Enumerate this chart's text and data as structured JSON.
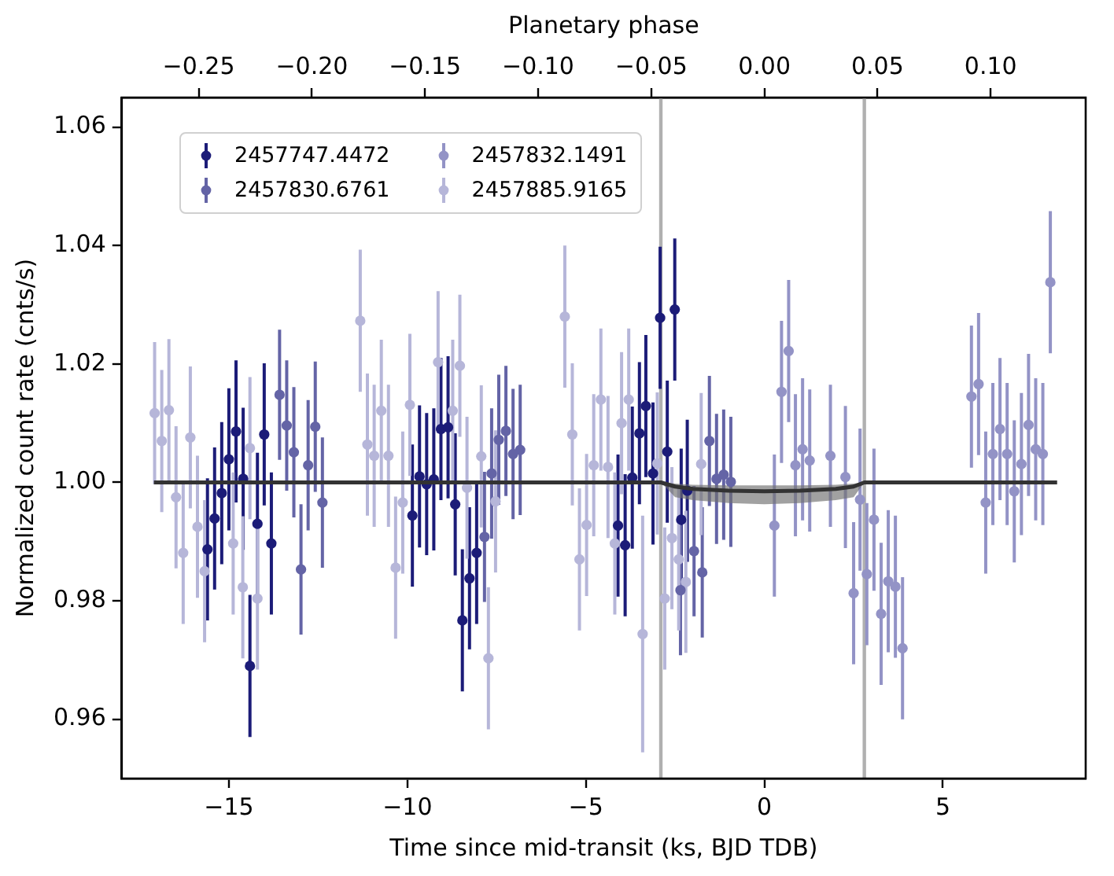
{
  "chart_data": {
    "type": "scatter",
    "xlabel": "Time since mid-transit (ks, BJD TDB)",
    "ylabel": "Normalized count rate (cnts/s)",
    "x2label": "Planetary phase",
    "xlim": [
      -18,
      9
    ],
    "xticks": [
      {
        "value": -15,
        "label": "−15"
      },
      {
        "value": -10,
        "label": "−10"
      },
      {
        "value": -5,
        "label": "−5"
      },
      0,
      5
    ],
    "x2lim": [
      -0.284,
      0.142
    ],
    "x2ticks": [
      {
        "value": -0.25,
        "label": "−0.25"
      },
      {
        "value": -0.2,
        "label": "−0.20"
      },
      {
        "value": -0.15,
        "label": "−0.15"
      },
      {
        "value": -0.1,
        "label": "−0.10"
      },
      {
        "value": -0.05,
        "label": "−0.05"
      },
      {
        "value": 0,
        "label": "0.00"
      },
      {
        "value": 0.05,
        "label": "0.05"
      },
      {
        "value": 0.1,
        "label": "0.10"
      }
    ],
    "ylim": [
      0.95,
      1.065
    ],
    "yticks": [
      {
        "value": 0.96,
        "label": "0.96"
      },
      {
        "value": 0.98,
        "label": "0.98"
      },
      {
        "value": 1,
        "label": "1.00"
      },
      {
        "value": 1.02,
        "label": "1.02"
      },
      {
        "value": 1.04,
        "label": "1.04"
      },
      {
        "value": 1.06,
        "label": "1.06"
      }
    ],
    "grid": false,
    "legend": "top left",
    "marker": "circle",
    "ref_lines": [
      {
        "axis": "x",
        "value": -2.9,
        "color": "#b0b0b0"
      },
      {
        "axis": "x",
        "value": 2.8,
        "color": "#b0b0b0"
      }
    ],
    "series": [
      {
        "name": "2457747.4472",
        "color": "#1c1c78",
        "x": [
          -15.6,
          -15.4,
          -15.2,
          -15.0,
          -14.8,
          -14.6,
          -14.41,
          -14.2,
          -14.01,
          -13.81,
          -9.86,
          -9.66,
          -9.46,
          -9.26,
          -9.06,
          -8.86,
          -8.66,
          -8.46,
          -8.26,
          -8.06,
          -4.1,
          -3.9,
          -3.7,
          -3.5,
          -3.32,
          -3.12,
          -2.92,
          -2.72,
          -2.51,
          -2.33,
          -2.16
        ],
        "values": [
          0.9887,
          0.9939,
          0.9982,
          1.0039,
          1.0086,
          1.0006,
          0.969,
          0.993,
          1.0081,
          0.9897,
          0.9944,
          1.001,
          0.9997,
          1.0005,
          1.009,
          1.0093,
          0.9963,
          0.9767,
          0.9838,
          0.9881,
          0.9927,
          0.9894,
          1.0008,
          1.0083,
          1.0129,
          1.0015,
          1.0278,
          1.0052,
          1.0292,
          0.9937,
          0.9986
        ],
        "errors": [
          0.012,
          0.012,
          0.012,
          0.012,
          0.012,
          0.012,
          0.012,
          0.012,
          0.012,
          0.012,
          0.012,
          0.012,
          0.012,
          0.012,
          0.012,
          0.012,
          0.012,
          0.012,
          0.012,
          0.012,
          0.012,
          0.012,
          0.012,
          0.012,
          0.012,
          0.012,
          0.012,
          0.012,
          0.012,
          0.012,
          0.012
        ]
      },
      {
        "name": "2457830.6761",
        "color": "#6464a6",
        "x": [
          -13.58,
          -13.38,
          -13.18,
          -12.98,
          -12.78,
          -12.58,
          -12.38,
          -7.84,
          -7.64,
          -7.44,
          -7.24,
          -7.04,
          -6.84,
          -2.35,
          -1.97,
          -1.74,
          -1.54,
          -1.34,
          -1.14,
          -0.94
        ],
        "values": [
          1.0148,
          1.0096,
          1.0051,
          0.9853,
          1.0029,
          1.0094,
          0.9966,
          0.9908,
          1.0015,
          1.0072,
          1.0087,
          1.0048,
          1.0055,
          0.9818,
          0.9884,
          0.9848,
          1.007,
          1.0006,
          1.0013,
          1.0001
        ],
        "errors": [
          0.011,
          0.011,
          0.011,
          0.011,
          0.011,
          0.011,
          0.011,
          0.011,
          0.011,
          0.011,
          0.011,
          0.011,
          0.011,
          0.011,
          0.011,
          0.011,
          0.011,
          0.011,
          0.011,
          0.011
        ]
      },
      {
        "name": "2457832.1491",
        "color": "#9393c6",
        "x": [
          0.28,
          0.48,
          0.68,
          0.87,
          1.07,
          1.27,
          1.85,
          2.27,
          2.5,
          2.68,
          2.87,
          3.07,
          3.27,
          3.47,
          3.67,
          3.87,
          5.8,
          6.0,
          6.2,
          6.4,
          6.6,
          6.8,
          7.0,
          7.2,
          7.4,
          7.6,
          7.8,
          8.01
        ],
        "values": [
          0.9927,
          1.0153,
          1.0222,
          1.0029,
          1.0056,
          1.0037,
          1.0045,
          1.0009,
          0.9813,
          0.9971,
          0.9845,
          0.9937,
          0.9778,
          0.9833,
          0.9824,
          0.972,
          1.0145,
          1.0166,
          0.9966,
          1.0048,
          1.009,
          1.0048,
          0.9985,
          1.0031,
          1.0097,
          1.0056,
          1.0048,
          1.0338
        ],
        "errors": [
          0.012,
          0.012,
          0.012,
          0.012,
          0.012,
          0.012,
          0.012,
          0.012,
          0.012,
          0.012,
          0.012,
          0.012,
          0.012,
          0.012,
          0.012,
          0.012,
          0.012,
          0.012,
          0.012,
          0.012,
          0.012,
          0.012,
          0.012,
          0.012,
          0.012,
          0.012,
          0.012,
          0.012
        ]
      },
      {
        "name": "2457885.9165",
        "color": "#b6b6d9",
        "x": [
          -17.08,
          -16.88,
          -16.68,
          -16.48,
          -16.28,
          -16.08,
          -15.88,
          -15.68,
          -14.88,
          -14.61,
          -14.41,
          -14.2,
          -11.32,
          -11.12,
          -10.93,
          -10.73,
          -10.53,
          -10.33,
          -10.13,
          -9.93,
          -9.14,
          -8.73,
          -8.53,
          -8.33,
          -7.93,
          -7.73,
          -7.53,
          -5.59,
          -5.38,
          -5.18,
          -4.98,
          -4.78,
          -4.58,
          -4.38,
          -4.19,
          -4.0,
          -3.8,
          -3.41,
          -3.0,
          -2.79,
          -2.59,
          -2.4,
          -2.2,
          -1.77
        ],
        "values": [
          1.0117,
          1.007,
          1.0122,
          0.9975,
          0.9881,
          1.0076,
          0.9925,
          0.985,
          0.9897,
          0.9823,
          1.0058,
          0.9804,
          1.0273,
          1.0064,
          1.0045,
          1.0121,
          1.0045,
          0.9856,
          0.9966,
          1.0131,
          1.0203,
          1.0121,
          1.0197,
          0.9991,
          1.0044,
          0.9703,
          0.9968,
          1.028,
          1.0081,
          0.987,
          0.9928,
          1.0029,
          1.014,
          1.0026,
          0.9897,
          1.01,
          1.014,
          0.9744,
          1.0032,
          0.9804,
          0.9906,
          0.987,
          0.9832,
          1.0031
        ],
        "errors": [
          0.012,
          0.012,
          0.012,
          0.012,
          0.012,
          0.012,
          0.012,
          0.012,
          0.012,
          0.012,
          0.012,
          0.012,
          0.012,
          0.012,
          0.012,
          0.012,
          0.012,
          0.012,
          0.012,
          0.012,
          0.012,
          0.012,
          0.012,
          0.012,
          0.012,
          0.012,
          0.012,
          0.012,
          0.012,
          0.012,
          0.012,
          0.012,
          0.012,
          0.012,
          0.012,
          0.012,
          0.012,
          0.02,
          0.012,
          0.012,
          0.012,
          0.012,
          0.012,
          0.012
        ]
      },
      {
        "type": "line",
        "marker": "none",
        "color": "#333333",
        "x": [
          -17.1,
          -2.9,
          -2.5,
          -2,
          -1,
          0,
          1,
          2,
          2.5,
          2.8,
          8.2
        ],
        "values": [
          1,
          1,
          0.9993,
          0.9989,
          0.9986,
          0.9985,
          0.9986,
          0.9989,
          0.9993,
          1,
          1
        ],
        "lower": [
          1,
          1,
          0.9975,
          0.997,
          0.9965,
          0.9963,
          0.9965,
          0.997,
          0.9975,
          1,
          1
        ],
        "upper": [
          1,
          1,
          0.9998,
          0.9996,
          0.9995,
          0.9995,
          0.9995,
          0.9996,
          0.9998,
          1,
          1
        ]
      }
    ]
  }
}
